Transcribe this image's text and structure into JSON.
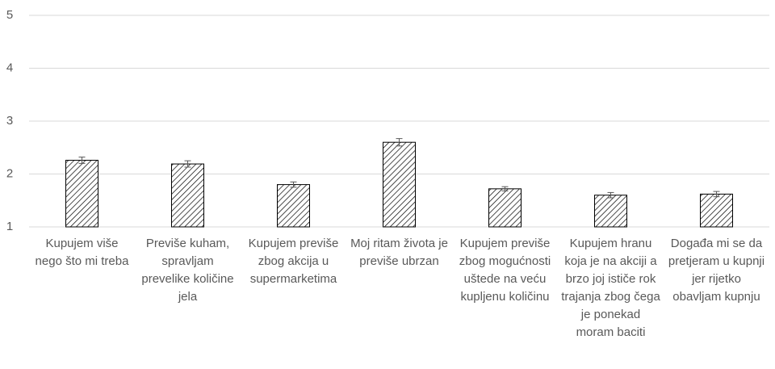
{
  "chart_data": {
    "type": "bar",
    "categories": [
      "Kupujem više nego što mi treba",
      "Previše kuham, spravljam prevelike količine jela",
      "Kupujem previše zbog akcija u supermarketima",
      "Moj ritam života je previše ubrzan",
      "Kupujem previše zbog mogućnosti uštede na veću kupljenu količinu",
      "Kupujem hranu koja je na akciji a brzo joj ističe rok trajanja zbog čega je ponekad moram baciti",
      "Događa mi se da pretjeram u kupnji jer rijetko obavljam kupnju"
    ],
    "values": [
      2.26,
      2.19,
      1.8,
      2.6,
      1.72,
      1.6,
      1.62
    ],
    "errors": [
      0.06,
      0.06,
      0.05,
      0.07,
      0.04,
      0.05,
      0.05
    ],
    "color": "#000000",
    "ylim": [
      1,
      5
    ],
    "yticks": [
      1,
      2,
      3,
      4,
      5
    ],
    "grid": true
  }
}
